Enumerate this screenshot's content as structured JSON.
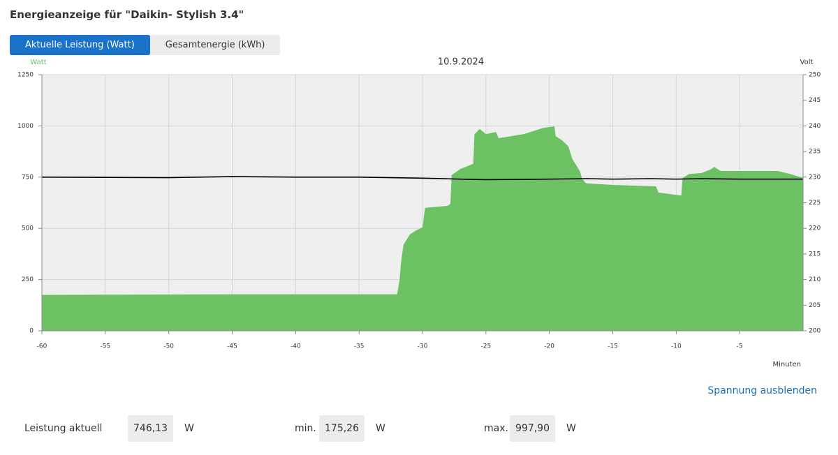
{
  "header": {
    "title": "Energieanzeige für \"Daikin- Stylish 3.4\""
  },
  "tabs": [
    "Aktuelle Leistung (Watt)",
    "Gesamtenergie (kWh)"
  ],
  "active_tab": 0,
  "chart_data": {
    "type": "area",
    "title": "10.9.2024",
    "y_label": "Watt",
    "y2_label": "Volt",
    "x_label": "Minuten",
    "xlim": [
      -60,
      0
    ],
    "xticks": [
      -60,
      -55,
      -50,
      -45,
      -40,
      -35,
      -30,
      -25,
      -20,
      -15,
      -10,
      -5
    ],
    "ylim": [
      0,
      1250
    ],
    "yticks": [
      0,
      250,
      500,
      750,
      1000,
      1250
    ],
    "y2lim": [
      200,
      250
    ],
    "y2ticks": [
      200,
      205,
      210,
      215,
      220,
      225,
      230,
      235,
      240,
      245,
      250
    ],
    "grid": true,
    "series": [
      {
        "type": "area",
        "color": "#6cc263",
        "x": [
          -60,
          -45,
          -32,
          -31.8,
          -31.7,
          -31.5,
          -31,
          -30.5,
          -30,
          -29.8,
          -28,
          -27.8,
          -27.7,
          -27,
          -26,
          -25.9,
          -25.8,
          -25.5,
          -25,
          -24.2,
          -24,
          -22,
          -20.5,
          -19.6,
          -19.5,
          -19,
          -18.5,
          -18.2,
          -17.6,
          -17.4,
          -17.1,
          -15,
          -11.6,
          -11.4,
          -9.6,
          -9.5,
          -9,
          -8,
          -7.2,
          -7,
          -6.5,
          -2,
          -1,
          0
        ],
        "values": [
          175,
          178,
          178,
          250,
          330,
          420,
          470,
          490,
          505,
          600,
          610,
          620,
          760,
          790,
          815,
          960,
          965,
          985,
          960,
          970,
          940,
          960,
          990,
          998,
          950,
          930,
          900,
          840,
          780,
          740,
          720,
          712,
          705,
          675,
          660,
          745,
          765,
          770,
          790,
          800,
          780,
          780,
          765,
          746
        ]
      },
      {
        "type": "line",
        "color": "#000000",
        "axis": "y2",
        "x": [
          -60,
          -50,
          -45,
          -40,
          -35,
          -30,
          -27,
          -25,
          -20,
          -17,
          -15,
          -12,
          -10,
          -8,
          -5,
          -2,
          0
        ],
        "values": [
          230.0,
          229.9,
          230.1,
          230.0,
          230.0,
          229.8,
          229.6,
          229.5,
          229.6,
          229.7,
          229.6,
          229.7,
          229.6,
          229.7,
          229.6,
          229.6,
          229.6
        ]
      }
    ]
  },
  "link": "Spannung ausblenden",
  "stats": [
    {
      "label": "Leistung aktuell",
      "value": "746,13",
      "unit": "W"
    },
    {
      "label": "min.",
      "value": "175,26",
      "unit": "W"
    },
    {
      "label": "max.",
      "value": "997,90",
      "unit": "W"
    }
  ]
}
